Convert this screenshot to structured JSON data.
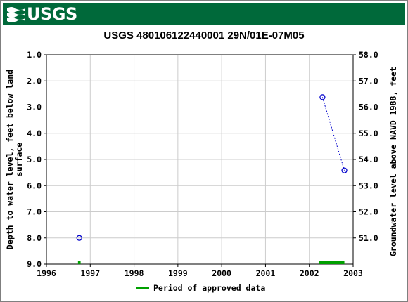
{
  "header": {
    "logo_text": "USGS",
    "logo_icon": "usgs-wave-logo-icon",
    "banner_color": "#00693a"
  },
  "chart_data": {
    "type": "scatter",
    "title": "USGS 480106122440001 29N/01E-07M05",
    "ylabel_left": [
      "Depth to water level, feet below land",
      "surface"
    ],
    "ylabel_right": "Groundwater level above NAVD 1988, feet",
    "x_ticks": [
      "1996",
      "1997",
      "1998",
      "1999",
      "2000",
      "2001",
      "2002",
      "2003"
    ],
    "xlim": [
      1996,
      2003
    ],
    "y_left_ticks": [
      "1.0",
      "2.0",
      "3.0",
      "4.0",
      "5.0",
      "6.0",
      "7.0",
      "8.0",
      "9.0"
    ],
    "ylim_left": [
      1.0,
      9.0
    ],
    "y_right_ticks": [
      "58.0",
      "57.0",
      "56.0",
      "55.0",
      "54.0",
      "53.0",
      "52.0",
      "51.0"
    ],
    "right_axis_offset": 59.0,
    "grid": true,
    "series": [
      {
        "marker": "circle-open",
        "color": "#0000cc",
        "points": [
          {
            "x": 1996.75,
            "y": 8.0
          },
          {
            "x": 2002.3,
            "y": 2.62
          },
          {
            "x": 2002.8,
            "y": 5.42
          }
        ],
        "connect": [
          [
            1,
            2
          ]
        ]
      }
    ],
    "approved_periods": [
      {
        "start": 1996.72,
        "end": 1996.78
      },
      {
        "start": 2002.22,
        "end": 2002.8
      }
    ],
    "approved_color": "#00a000",
    "legend": {
      "label": "Period of approved data",
      "placement": "bottom-center"
    }
  }
}
